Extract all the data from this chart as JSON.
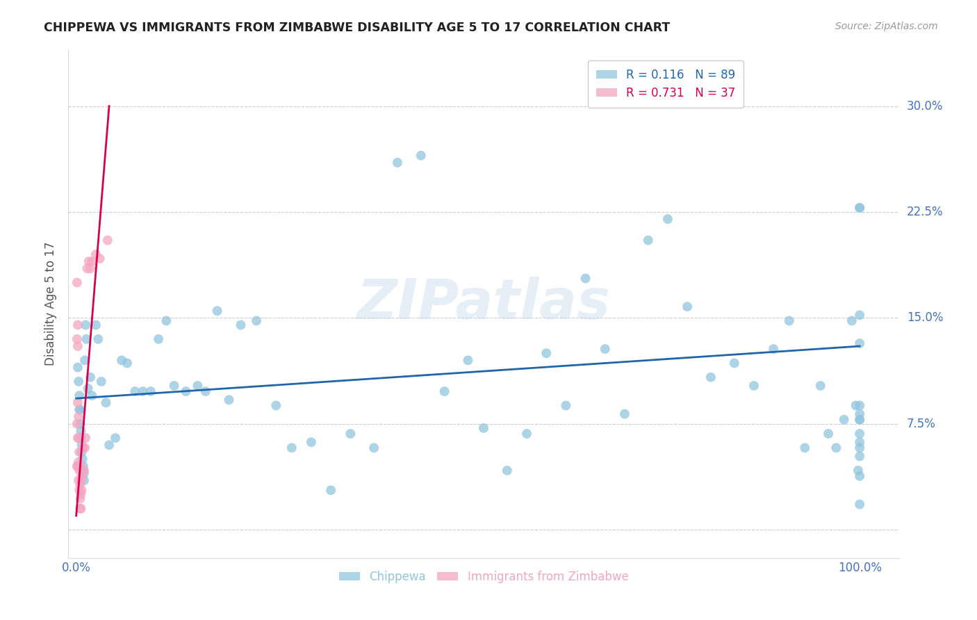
{
  "title": "CHIPPEWA VS IMMIGRANTS FROM ZIMBABWE DISABILITY AGE 5 TO 17 CORRELATION CHART",
  "source": "Source: ZipAtlas.com",
  "ylabel": "Disability Age 5 to 17",
  "ytick_values": [
    0.0,
    0.075,
    0.15,
    0.225,
    0.3
  ],
  "ytick_labels": [
    "0.0%",
    "7.5%",
    "15.0%",
    "22.5%",
    "30.0%"
  ],
  "xlim": [
    -0.01,
    1.05
  ],
  "ylim": [
    -0.02,
    0.34
  ],
  "chippewa_color": "#92c5de",
  "zimbabwe_color": "#f4a6c0",
  "trendline_chippewa_color": "#2166ac",
  "trendline_zimbabwe_color": "#d6004c",
  "watermark_text": "ZIPatlas",
  "background_color": "#ffffff",
  "grid_color": "#cccccc",
  "chippewa_x": [
    0.002,
    0.003,
    0.004,
    0.004,
    0.005,
    0.005,
    0.006,
    0.006,
    0.007,
    0.007,
    0.008,
    0.009,
    0.01,
    0.01,
    0.011,
    0.012,
    0.013,
    0.015,
    0.018,
    0.02,
    0.025,
    0.028,
    0.032,
    0.038,
    0.042,
    0.05,
    0.058,
    0.065,
    0.075,
    0.085,
    0.095,
    0.105,
    0.115,
    0.125,
    0.14,
    0.155,
    0.165,
    0.18,
    0.195,
    0.21,
    0.23,
    0.255,
    0.275,
    0.3,
    0.325,
    0.35,
    0.38,
    0.41,
    0.44,
    0.47,
    0.5,
    0.52,
    0.55,
    0.575,
    0.6,
    0.625,
    0.65,
    0.675,
    0.7,
    0.73,
    0.755,
    0.78,
    0.81,
    0.84,
    0.865,
    0.89,
    0.91,
    0.93,
    0.95,
    0.96,
    0.97,
    0.98,
    0.99,
    0.995,
    0.998,
    1.0,
    1.0,
    1.0,
    1.0,
    1.0,
    1.0,
    1.0,
    1.0,
    1.0,
    1.0,
    1.0,
    1.0,
    1.0,
    1.0
  ],
  "chippewa_y": [
    0.115,
    0.105,
    0.095,
    0.085,
    0.085,
    0.075,
    0.07,
    0.065,
    0.06,
    0.055,
    0.05,
    0.045,
    0.04,
    0.035,
    0.12,
    0.145,
    0.135,
    0.1,
    0.108,
    0.095,
    0.145,
    0.135,
    0.105,
    0.09,
    0.06,
    0.065,
    0.12,
    0.118,
    0.098,
    0.098,
    0.098,
    0.135,
    0.148,
    0.102,
    0.098,
    0.102,
    0.098,
    0.155,
    0.092,
    0.145,
    0.148,
    0.088,
    0.058,
    0.062,
    0.028,
    0.068,
    0.058,
    0.26,
    0.265,
    0.098,
    0.12,
    0.072,
    0.042,
    0.068,
    0.125,
    0.088,
    0.178,
    0.128,
    0.082,
    0.205,
    0.22,
    0.158,
    0.108,
    0.118,
    0.102,
    0.128,
    0.148,
    0.058,
    0.102,
    0.068,
    0.058,
    0.078,
    0.148,
    0.088,
    0.042,
    0.078,
    0.088,
    0.058,
    0.228,
    0.152,
    0.078,
    0.068,
    0.228,
    0.132,
    0.082,
    0.052,
    0.038,
    0.062,
    0.018
  ],
  "zimbabwe_x": [
    0.001,
    0.001,
    0.001,
    0.001,
    0.002,
    0.002,
    0.002,
    0.002,
    0.002,
    0.003,
    0.003,
    0.003,
    0.003,
    0.004,
    0.004,
    0.004,
    0.005,
    0.005,
    0.005,
    0.005,
    0.006,
    0.006,
    0.006,
    0.007,
    0.007,
    0.008,
    0.009,
    0.01,
    0.011,
    0.012,
    0.014,
    0.016,
    0.018,
    0.02,
    0.025,
    0.03,
    0.04
  ],
  "zimbabwe_y": [
    0.175,
    0.135,
    0.075,
    0.045,
    0.145,
    0.13,
    0.09,
    0.065,
    0.045,
    0.08,
    0.065,
    0.048,
    0.035,
    0.055,
    0.042,
    0.028,
    0.045,
    0.032,
    0.022,
    0.015,
    0.035,
    0.025,
    0.015,
    0.038,
    0.028,
    0.042,
    0.058,
    0.042,
    0.058,
    0.065,
    0.185,
    0.19,
    0.185,
    0.19,
    0.195,
    0.192,
    0.205
  ],
  "chippewa_trend_x": [
    0.0,
    1.0
  ],
  "chippewa_trend_y": [
    0.093,
    0.13
  ],
  "zimbabwe_trend_x_start": 0.0,
  "zimbabwe_trend_x_end": 0.042,
  "zimbabwe_trend_y_start": 0.01,
  "zimbabwe_trend_y_end": 0.3,
  "legend_entries": [
    {
      "label": "R = 0.116   N = 89",
      "color": "#92c5de",
      "text_color": "#2166ac"
    },
    {
      "label": "R = 0.731   N = 37",
      "color": "#f4a6c0",
      "text_color": "#d6004c"
    }
  ],
  "bottom_legend": [
    {
      "label": "Chippewa",
      "color": "#92c5de"
    },
    {
      "label": "Immigrants from Zimbabwe",
      "color": "#f4a6c0"
    }
  ]
}
